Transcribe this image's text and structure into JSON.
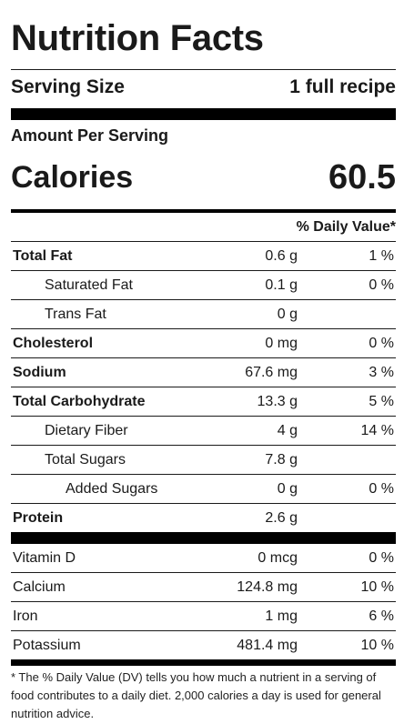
{
  "title": "Nutrition Facts",
  "serving": {
    "label": "Serving Size",
    "value": "1 full recipe"
  },
  "amount_per_serving": "Amount Per Serving",
  "calories": {
    "label": "Calories",
    "value": "60.5"
  },
  "daily_value_header": "% Daily Value*",
  "nutrients": [
    {
      "name": "Total Fat",
      "amount": "0.6 g",
      "dv": "1 %"
    },
    {
      "name": "Saturated Fat",
      "amount": "0.1 g",
      "dv": "0 %"
    },
    {
      "name": "Trans Fat",
      "amount": "0 g",
      "dv": ""
    },
    {
      "name": "Cholesterol",
      "amount": "0 mg",
      "dv": "0 %"
    },
    {
      "name": "Sodium",
      "amount": "67.6 mg",
      "dv": "3 %"
    },
    {
      "name": "Total Carbohydrate",
      "amount": "13.3 g",
      "dv": "5 %"
    },
    {
      "name": "Dietary Fiber",
      "amount": "4 g",
      "dv": "14 %"
    },
    {
      "name": "Total Sugars",
      "amount": "7.8 g",
      "dv": ""
    },
    {
      "name": "Added Sugars",
      "amount": "0 g",
      "dv": "0 %"
    },
    {
      "name": "Protein",
      "amount": "2.6 g",
      "dv": ""
    }
  ],
  "vitamins": [
    {
      "name": "Vitamin D",
      "amount": "0 mcg",
      "dv": "0 %"
    },
    {
      "name": "Calcium",
      "amount": "124.8 mg",
      "dv": "10 %"
    },
    {
      "name": "Iron",
      "amount": "1 mg",
      "dv": "6 %"
    },
    {
      "name": "Potassium",
      "amount": "481.4 mg",
      "dv": "10 %"
    }
  ],
  "footnote": "* The % Daily Value (DV) tells you how much a nutrient in a serving of food contributes to a daily diet. 2,000 calories a day is used for general nutrition advice."
}
